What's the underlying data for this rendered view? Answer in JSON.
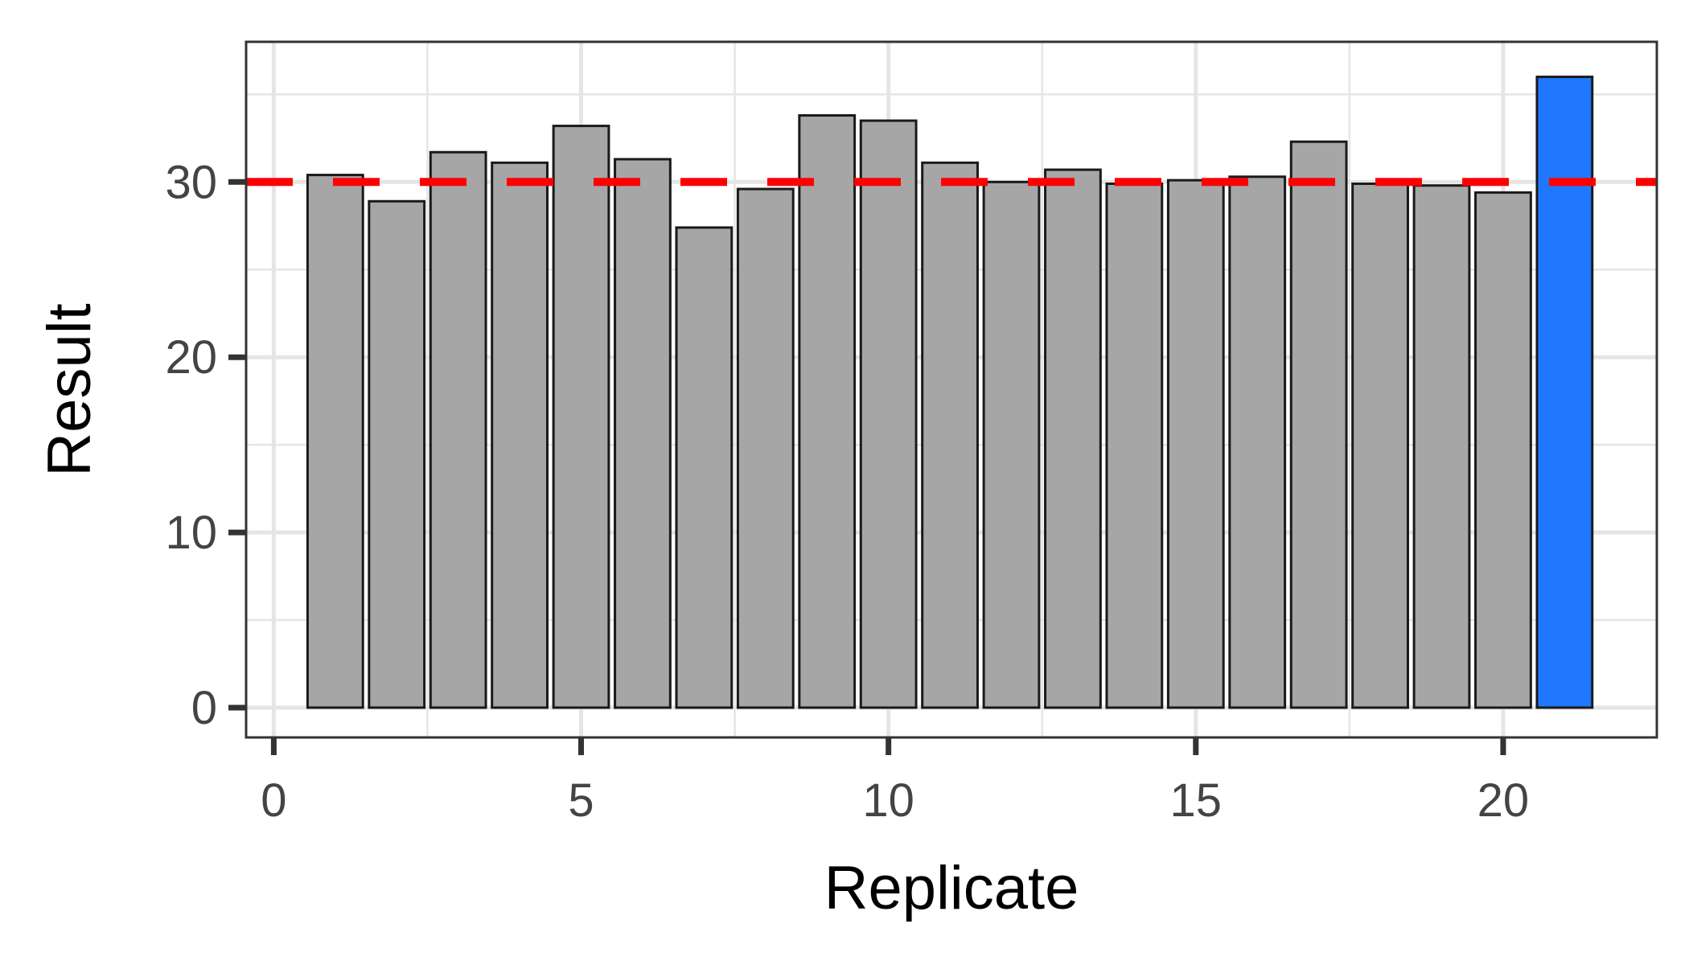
{
  "chart_data": {
    "type": "bar",
    "title": "",
    "xlabel": "Replicate",
    "ylabel": "Result",
    "x": [
      1,
      2,
      3,
      4,
      5,
      6,
      7,
      8,
      9,
      10,
      11,
      12,
      13,
      14,
      15,
      16,
      17,
      18,
      19,
      20,
      21
    ],
    "values": [
      30.4,
      28.9,
      31.7,
      31.1,
      33.2,
      31.3,
      27.4,
      29.6,
      33.8,
      33.5,
      31.1,
      30.0,
      30.7,
      29.9,
      30.1,
      30.3,
      32.3,
      29.9,
      29.8,
      29.4,
      36.0
    ],
    "bar_colors": [
      "#A6A6A6",
      "#A6A6A6",
      "#A6A6A6",
      "#A6A6A6",
      "#A6A6A6",
      "#A6A6A6",
      "#A6A6A6",
      "#A6A6A6",
      "#A6A6A6",
      "#A6A6A6",
      "#A6A6A6",
      "#A6A6A6",
      "#A6A6A6",
      "#A6A6A6",
      "#A6A6A6",
      "#A6A6A6",
      "#A6A6A6",
      "#A6A6A6",
      "#A6A6A6",
      "#A6A6A6",
      "#1F78FF"
    ],
    "bar_outline_color": "#1A1A1A",
    "reference_line": {
      "y": 30,
      "color": "#FF0000",
      "style": "dashed"
    },
    "xlim": [
      -0.45,
      22.5
    ],
    "ylim": [
      -1.7,
      38.0
    ],
    "xticks": [
      0,
      5,
      10,
      15,
      20
    ],
    "xtick_labels": [
      "0",
      "5",
      "10",
      "15",
      "20"
    ],
    "yticks": [
      0,
      10,
      20,
      30
    ],
    "ytick_labels": [
      "0",
      "10",
      "20",
      "30"
    ],
    "grid": true,
    "legend": "none",
    "panel_border_color": "#333333",
    "grid_color": "#E5E5E5"
  }
}
